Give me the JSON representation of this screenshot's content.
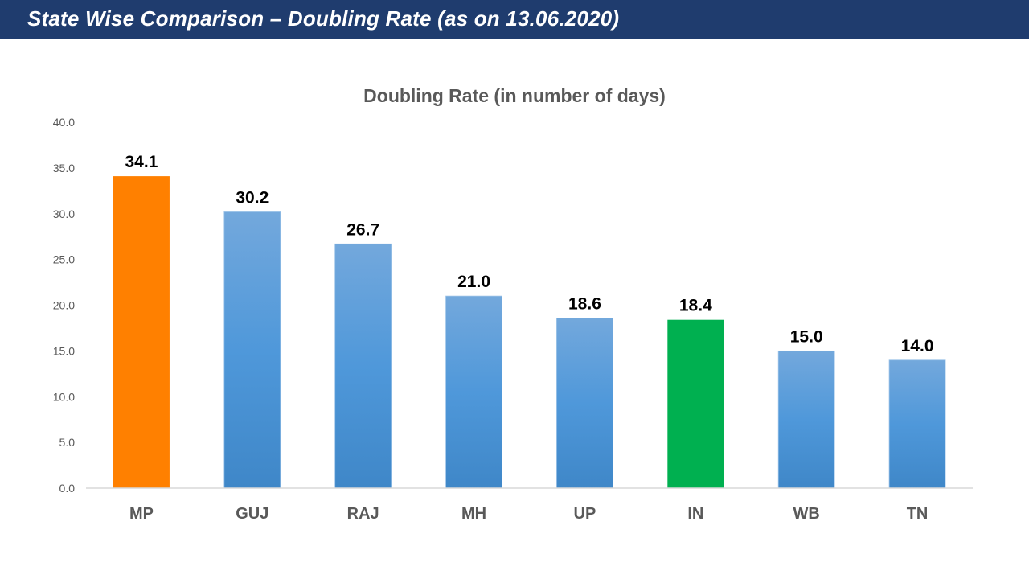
{
  "slide": {
    "title": "State Wise Comparison – Doubling Rate (as on 13.06.2020)"
  },
  "colors": {
    "header_bg": "#1f3c6e",
    "bar_default": "#5b9bd5",
    "bar_highlight_mp": "#ff8000",
    "bar_highlight_in": "#00b050"
  },
  "chart_data": {
    "type": "bar",
    "title": "Doubling Rate (in number of days)",
    "xlabel": "",
    "ylabel": "",
    "categories": [
      "MP",
      "GUJ",
      "RAJ",
      "MH",
      "UP",
      "IN",
      "WB",
      "TN"
    ],
    "values": [
      34.1,
      30.2,
      26.7,
      21.0,
      18.6,
      18.4,
      15.0,
      14.0
    ],
    "value_labels": [
      "34.1",
      "30.2",
      "26.7",
      "21.0",
      "18.6",
      "18.4",
      "15.0",
      "14.0"
    ],
    "bar_colors": [
      "#ff8000",
      "#5b9bd5",
      "#5b9bd5",
      "#5b9bd5",
      "#5b9bd5",
      "#00b050",
      "#5b9bd5",
      "#5b9bd5"
    ],
    "ylim": [
      0,
      40
    ],
    "yticks": [
      "0.0",
      "5.0",
      "10.0",
      "15.0",
      "20.0",
      "25.0",
      "30.0",
      "35.0",
      "40.0"
    ],
    "grid": false,
    "legend": "none"
  }
}
